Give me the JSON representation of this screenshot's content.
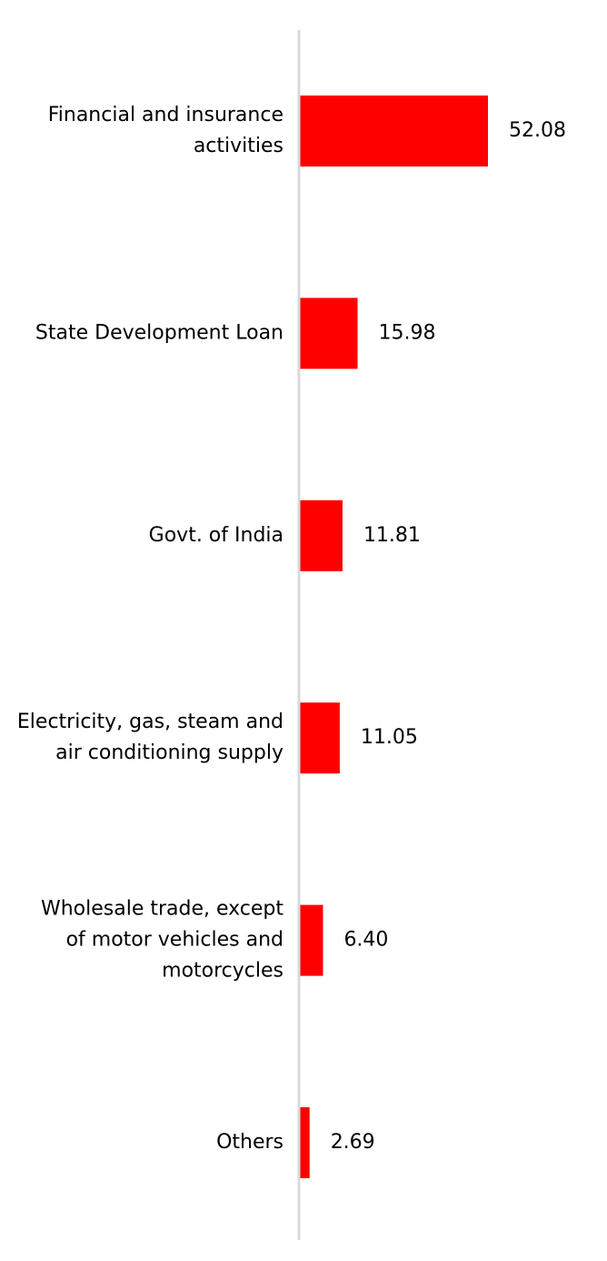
{
  "chart_data": {
    "type": "bar",
    "orientation": "horizontal",
    "categories": [
      "Financial and insurance activities",
      "State Development Loan",
      "Govt. of India",
      "Electricity, gas, steam and air conditioning supply",
      "Wholesale trade, except of motor vehicles and motorcycles",
      "Others"
    ],
    "category_lines": [
      [
        "Financial and insurance",
        "activities"
      ],
      [
        "State Development Loan"
      ],
      [
        "Govt. of India"
      ],
      [
        "Electricity, gas, steam and",
        "air conditioning supply"
      ],
      [
        "Wholesale trade, except",
        "of motor vehicles and",
        "motorcycles"
      ],
      [
        "Others"
      ]
    ],
    "values": [
      52.08,
      15.98,
      11.81,
      11.05,
      6.4,
      2.69
    ],
    "value_labels": [
      "52.08",
      "15.98",
      "11.81",
      "11.05",
      "6.40",
      "2.69"
    ],
    "title": "",
    "xlabel": "",
    "ylabel": "",
    "xlim": [
      0,
      52.08
    ],
    "grid": false,
    "legend": "none",
    "colors": {
      "bar": "#ff0000",
      "axis": "#d9d9d9",
      "text": "#000000"
    }
  }
}
